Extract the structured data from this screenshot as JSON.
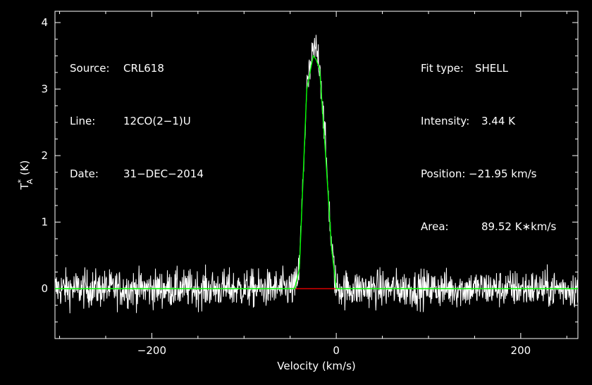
{
  "chart_data": {
    "type": "line",
    "title": "",
    "xlabel": "Velocity (km/s)",
    "ylabel_main": "T",
    "ylabel_sup": "*",
    "ylabel_sub": "A",
    "ylabel_unit": "(K)",
    "xlim": [
      -305,
      262
    ],
    "ylim": [
      -0.75,
      4.17
    ],
    "xticks": [
      -200,
      0,
      200
    ],
    "xtick_labels": [
      "−200",
      "0",
      "200"
    ],
    "yticks": [
      0,
      1,
      2,
      3,
      4
    ],
    "ytick_labels": [
      "0",
      "1",
      "2",
      "3",
      "4"
    ],
    "grid": false,
    "info_left": [
      {
        "label": "Source:",
        "value": "CRL618"
      },
      {
        "label": "Line:",
        "value": "12CO(2−1)U"
      },
      {
        "label": "Date:",
        "value": "31−DEC−2014"
      }
    ],
    "info_right": [
      {
        "label": "Fit type:",
        "value": "SHELL"
      },
      {
        "label": "Intensity:",
        "value": "3.44 K"
      },
      {
        "label": "Position:",
        "value": "−21.95 km/s"
      },
      {
        "label": "Area:",
        "value": "89.52 K∗km/s"
      }
    ],
    "series": [
      {
        "role": "observed spectrum",
        "color": "#ffffff",
        "noise_rms_K": 0.14,
        "profile_x": [
          -305,
          -45,
          -40,
          -32,
          -25,
          -22,
          -18,
          -12,
          -5,
          0,
          262
        ],
        "profile_y": [
          0,
          0,
          0.3,
          3.0,
          3.55,
          3.6,
          3.4,
          2.2,
          0.6,
          0,
          0
        ]
      },
      {
        "role": "shell fit",
        "color": "#00ff00",
        "x": [
          -305,
          -45,
          -40,
          -32,
          -25,
          -22,
          -18,
          -12,
          -5,
          0,
          262
        ],
        "y": [
          0,
          0,
          0.3,
          3.0,
          3.5,
          3.45,
          3.3,
          2.1,
          0.6,
          0,
          0
        ]
      },
      {
        "role": "fit baseline",
        "color": "#ff0000",
        "x": [
          -45,
          0
        ],
        "y": [
          0,
          0
        ]
      }
    ]
  }
}
